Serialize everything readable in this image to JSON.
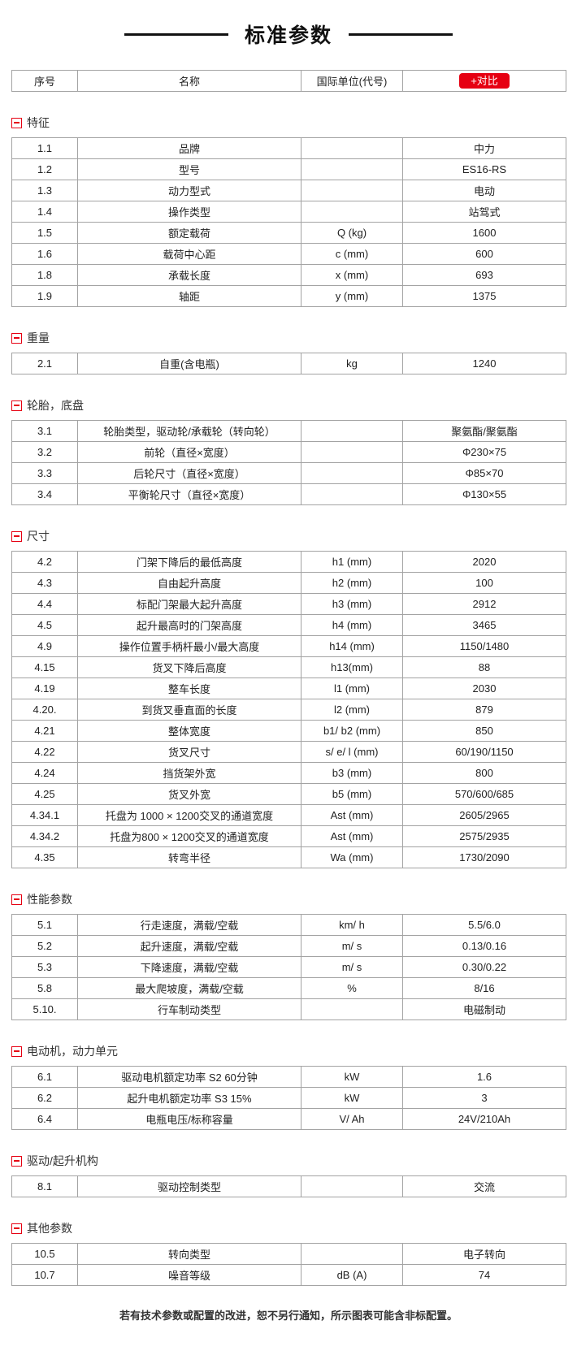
{
  "title": "标准参数",
  "table_header": {
    "col_no": "序号",
    "col_name": "名称",
    "col_unit": "国际单位(代号)",
    "compare_button": "+对比"
  },
  "sections": [
    {
      "label": "特征",
      "rows": [
        [
          "1.1",
          "品牌",
          "",
          "中力"
        ],
        [
          "1.2",
          "型号",
          "",
          "ES16-RS"
        ],
        [
          "1.3",
          "动力型式",
          "",
          "电动"
        ],
        [
          "1.4",
          "操作类型",
          "",
          "站驾式"
        ],
        [
          "1.5",
          "额定载荷",
          "Q (kg)",
          "1600"
        ],
        [
          "1.6",
          "载荷中心距",
          "c (mm)",
          "600"
        ],
        [
          "1.8",
          "承载长度",
          "x (mm)",
          "693"
        ],
        [
          "1.9",
          "轴距",
          "y (mm)",
          "1375"
        ]
      ]
    },
    {
      "label": "重量",
      "rows": [
        [
          "2.1",
          "自重(含电瓶)",
          "kg",
          "1240"
        ]
      ]
    },
    {
      "label": "轮胎，底盘",
      "rows": [
        [
          "3.1",
          "轮胎类型，驱动轮/承载轮（转向轮）",
          "",
          "聚氨酯/聚氨酯"
        ],
        [
          "3.2",
          "前轮（直径×宽度）",
          "",
          "Φ230×75"
        ],
        [
          "3.3",
          "后轮尺寸（直径×宽度）",
          "",
          "Φ85×70"
        ],
        [
          "3.4",
          "平衡轮尺寸（直径×宽度）",
          "",
          "Φ130×55"
        ]
      ]
    },
    {
      "label": "尺寸",
      "rows": [
        [
          "4.2",
          "门架下降后的最低高度",
          "h1 (mm)",
          "2020"
        ],
        [
          "4.3",
          "自由起升高度",
          "h2 (mm)",
          "100"
        ],
        [
          "4.4",
          "标配门架最大起升高度",
          "h3 (mm)",
          "2912"
        ],
        [
          "4.5",
          "起升最高时的门架高度",
          "h4 (mm)",
          "3465"
        ],
        [
          "4.9",
          "操作位置手柄杆最小/最大高度",
          "h14 (mm)",
          "1150/1480"
        ],
        [
          "4.15",
          "货叉下降后高度",
          "h13(mm)",
          "88"
        ],
        [
          "4.19",
          "整车长度",
          "l1 (mm)",
          "2030"
        ],
        [
          "4.20.",
          "到货叉垂直面的长度",
          "l2 (mm)",
          "879"
        ],
        [
          "4.21",
          "整体宽度",
          "b1/ b2 (mm)",
          "850"
        ],
        [
          "4.22",
          "货叉尺寸",
          "s/ e/ l (mm)",
          "60/190/1150"
        ],
        [
          "4.24",
          "挡货架外宽",
          "b3 (mm)",
          "800"
        ],
        [
          "4.25",
          "货叉外宽",
          "b5 (mm)",
          "570/600/685"
        ],
        [
          "4.34.1",
          "托盘为 1000 × 1200交叉的通道宽度",
          "Ast (mm)",
          "2605/2965"
        ],
        [
          "4.34.2",
          "托盘为800 × 1200交叉的通道宽度",
          "Ast (mm)",
          "2575/2935"
        ],
        [
          "4.35",
          "转弯半径",
          "Wa (mm)",
          "1730/2090"
        ]
      ]
    },
    {
      "label": "性能参数",
      "rows": [
        [
          "5.1",
          "行走速度，满载/空载",
          "km/ h",
          "5.5/6.0"
        ],
        [
          "5.2",
          "起升速度，满载/空载",
          "m/ s",
          "0.13/0.16"
        ],
        [
          "5.3",
          "下降速度，满载/空载",
          "m/ s",
          "0.30/0.22"
        ],
        [
          "5.8",
          "最大爬坡度，满载/空载",
          "%",
          "8/16"
        ],
        [
          "5.10.",
          "行车制动类型",
          "",
          "电磁制动"
        ]
      ]
    },
    {
      "label": "电动机，动力单元",
      "rows": [
        [
          "6.1",
          "驱动电机额定功率 S2 60分钟",
          "kW",
          "1.6"
        ],
        [
          "6.2",
          "起升电机额定功率 S3 15%",
          "kW",
          "3"
        ],
        [
          "6.4",
          "电瓶电压/标称容量",
          "V/ Ah",
          "24V/210Ah"
        ]
      ]
    },
    {
      "label": "驱动/起升机构",
      "rows": [
        [
          "8.1",
          "驱动控制类型",
          "",
          "交流"
        ]
      ]
    },
    {
      "label": "其他参数",
      "rows": [
        [
          "10.5",
          "转向类型",
          "",
          "电子转向"
        ],
        [
          "10.7",
          "噪音等级",
          "dB (A)",
          "74"
        ]
      ]
    }
  ],
  "footer": "若有技术参数或配置的改进，恕不另行通知，所示图表可能含非标配置。",
  "colors": {
    "accent_red": "#e60012",
    "border_gray": "#a3a3a3",
    "text": "#222222"
  }
}
